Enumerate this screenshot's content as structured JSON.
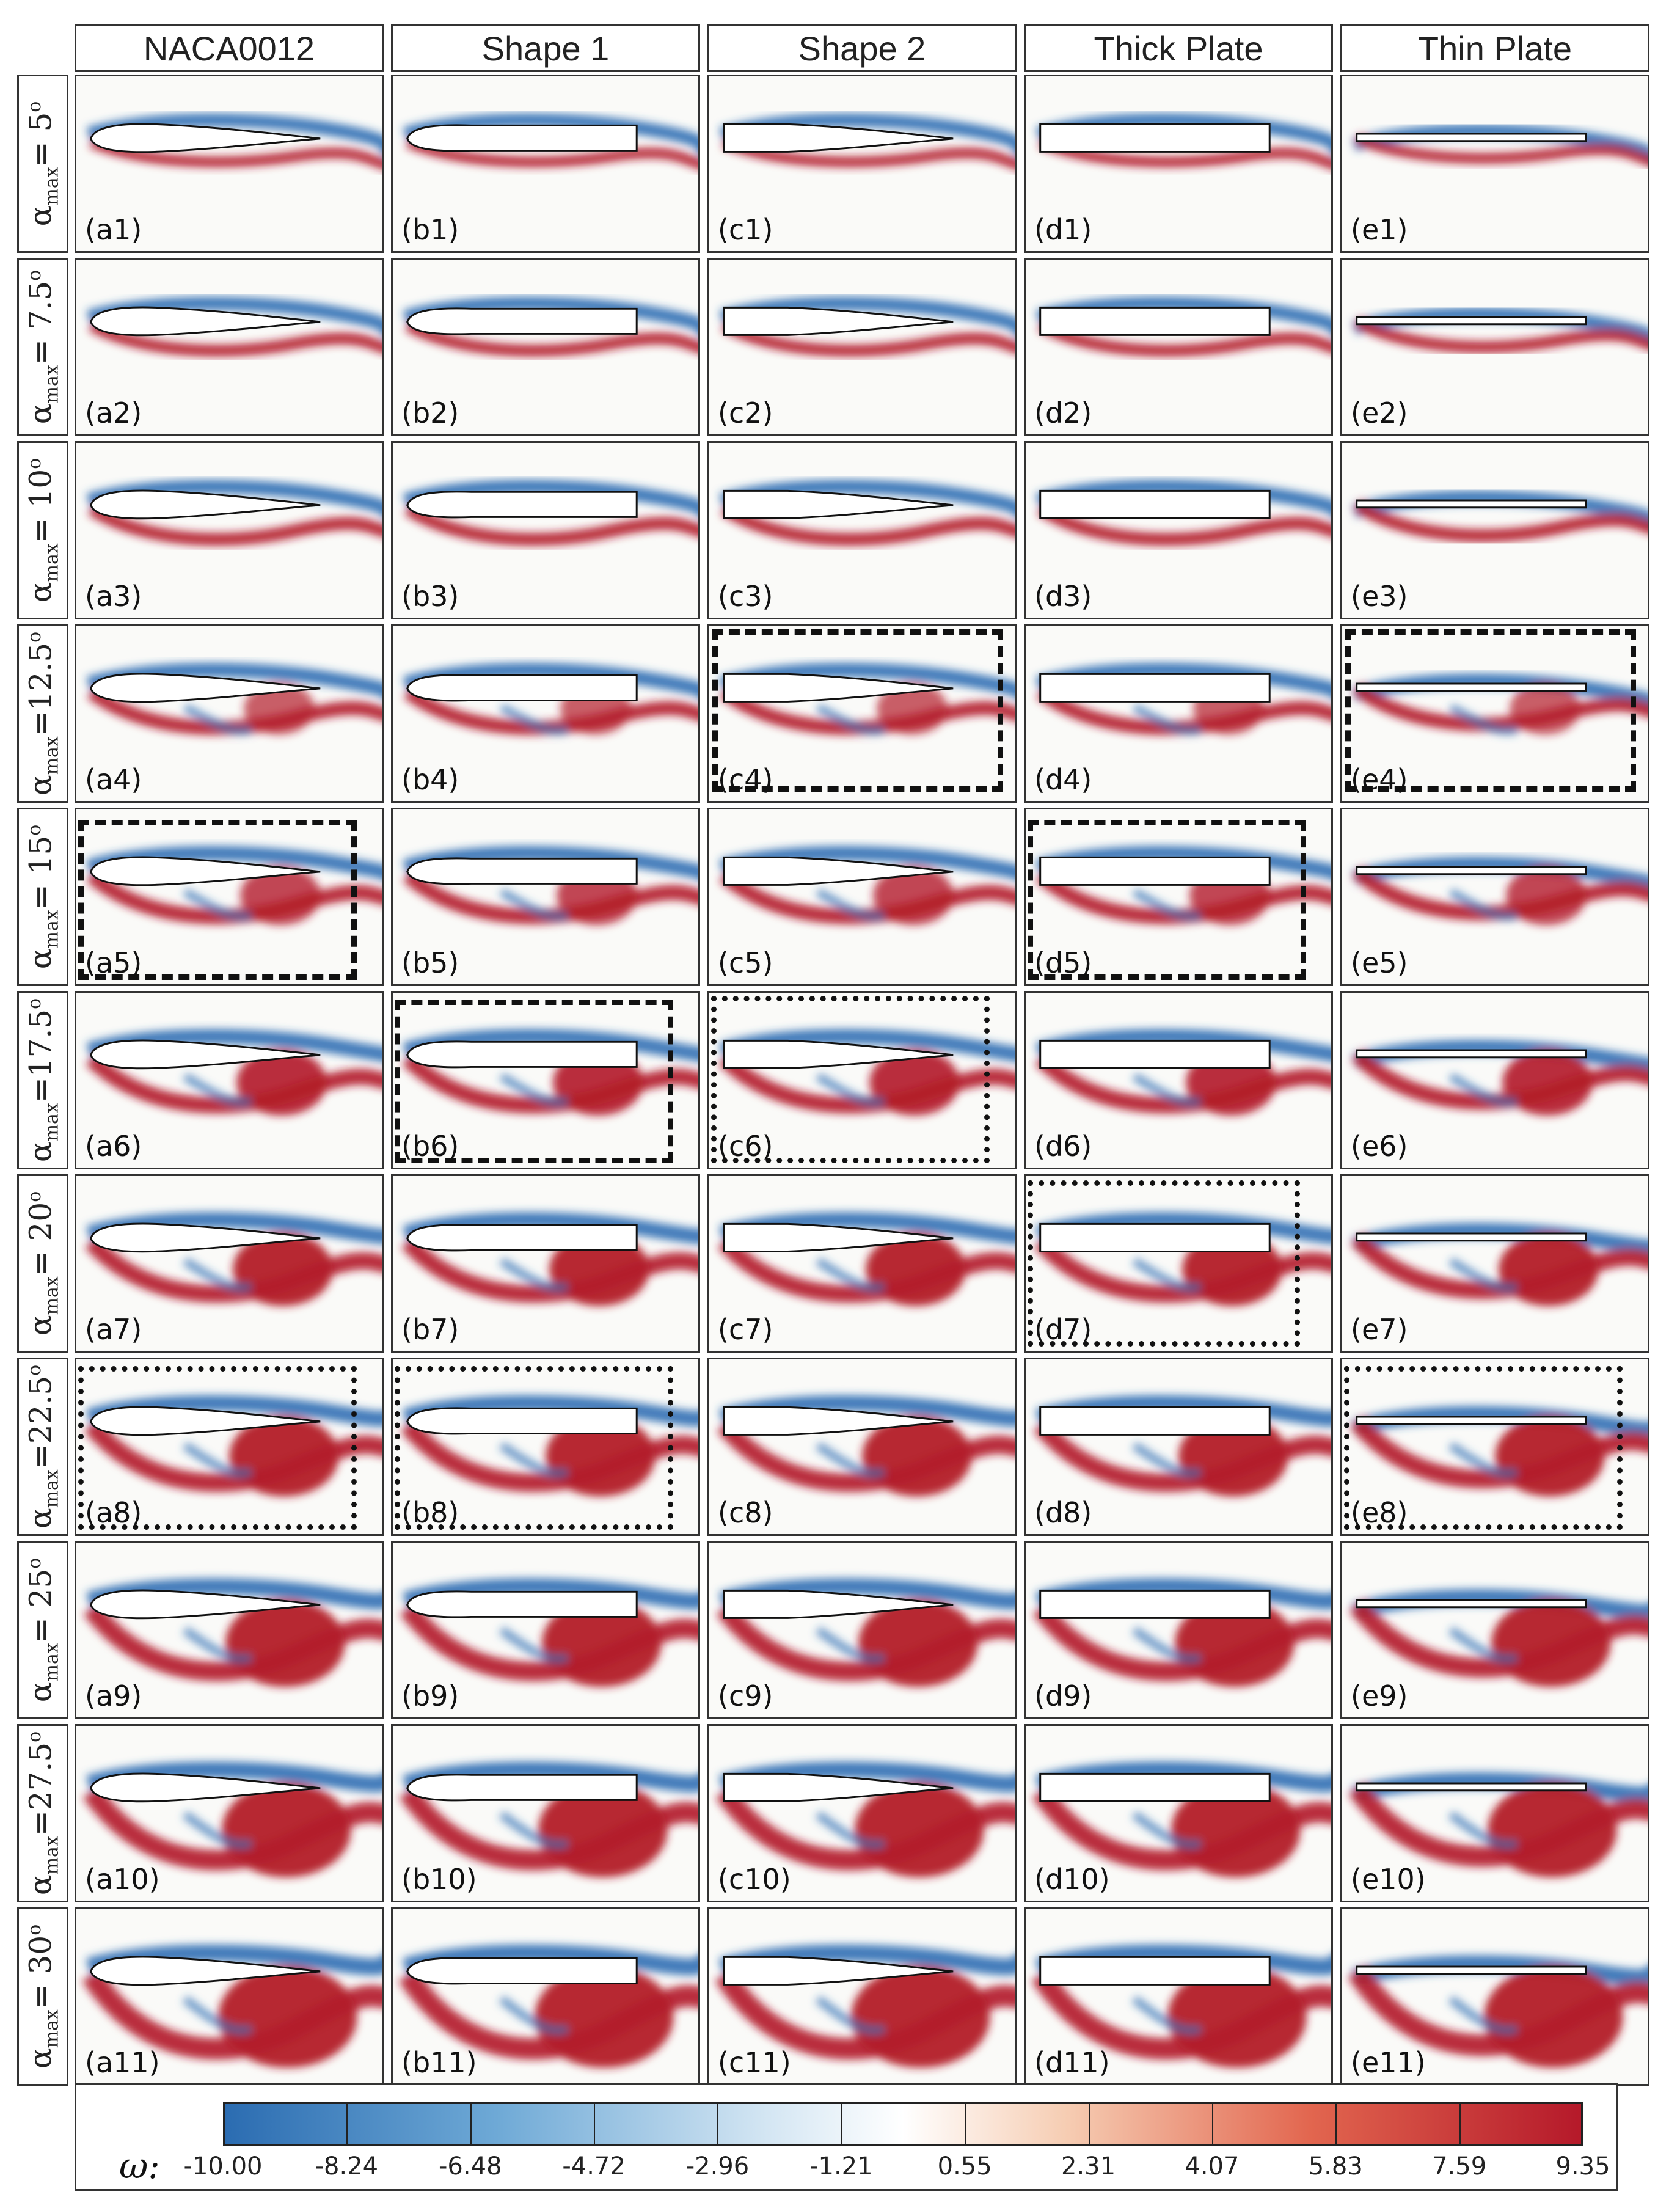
{
  "columns": [
    {
      "key": "a",
      "title": "NACA0012",
      "shape": "naca"
    },
    {
      "key": "b",
      "title": "Shape 1",
      "shape": "shape1"
    },
    {
      "key": "c",
      "title": "Shape 2",
      "shape": "shape2"
    },
    {
      "key": "d",
      "title": "Thick Plate",
      "shape": "thick"
    },
    {
      "key": "e",
      "title": "Thin Plate",
      "shape": "thin"
    }
  ],
  "rows": [
    {
      "alpha_deg": 5,
      "label": "= 5",
      "format": "spaced"
    },
    {
      "alpha_deg": 7.5,
      "label": "= 7.5",
      "format": "spaced"
    },
    {
      "alpha_deg": 10,
      "label": "= 10",
      "format": "spaced"
    },
    {
      "alpha_deg": 12.5,
      "label": "=12.5",
      "format": "tight"
    },
    {
      "alpha_deg": 15,
      "label": "= 15",
      "format": "spaced"
    },
    {
      "alpha_deg": 17.5,
      "label": "=17.5",
      "format": "tight"
    },
    {
      "alpha_deg": 20,
      "label": "= 20",
      "format": "spaced"
    },
    {
      "alpha_deg": 22.5,
      "label": "=22.5",
      "format": "tight"
    },
    {
      "alpha_deg": 25,
      "label": "= 25",
      "format": "spaced"
    },
    {
      "alpha_deg": 27.5,
      "label": "=27.5",
      "format": "tight"
    },
    {
      "alpha_deg": 30,
      "label": "= 30",
      "format": "spaced"
    }
  ],
  "row_symbol": "α",
  "row_subscript": "max",
  "row_degree": "o",
  "highlights": [
    {
      "panel": "c4",
      "style": "dashed"
    },
    {
      "panel": "e4",
      "style": "dashed"
    },
    {
      "panel": "a5",
      "style": "dashed"
    },
    {
      "panel": "d5",
      "style": "dashed"
    },
    {
      "panel": "b6",
      "style": "dashed"
    },
    {
      "panel": "c6",
      "style": "dotted"
    },
    {
      "panel": "d7",
      "style": "dotted"
    },
    {
      "panel": "a8",
      "style": "dotted"
    },
    {
      "panel": "b8",
      "style": "dotted"
    },
    {
      "panel": "e8",
      "style": "dotted"
    }
  ],
  "colorbar": {
    "symbol": "ω:",
    "ticks": [
      "-10.00",
      "-8.24",
      "-6.48",
      "-4.72",
      "-2.96",
      "-1.21",
      "0.55",
      "2.31",
      "4.07",
      "5.83",
      "7.59",
      "9.35"
    ],
    "min": -10.0,
    "max": 10.0,
    "colors": {
      "negative": "#2b6cb1",
      "zero": "#ffffff",
      "positive": "#b5192a"
    }
  }
}
